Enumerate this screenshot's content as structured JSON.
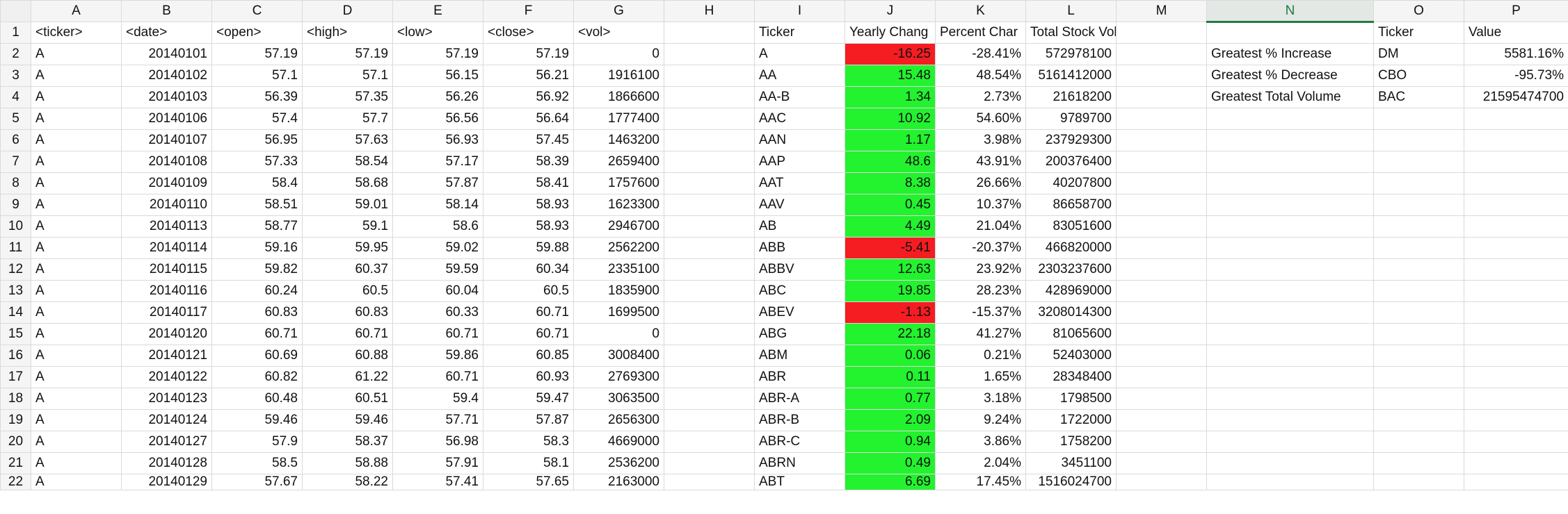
{
  "colors": {
    "positive": "#23f22f",
    "negative": "#f51d22",
    "selected_header": "#1c7c44"
  },
  "columns": [
    "A",
    "B",
    "C",
    "D",
    "E",
    "F",
    "G",
    "H",
    "I",
    "J",
    "K",
    "L",
    "M",
    "N",
    "O",
    "P"
  ],
  "selected_column": "N",
  "header_row": [
    "<ticker>",
    "<date>",
    "<open>",
    "<high>",
    "<low>",
    "<close>",
    "<vol>",
    "",
    "Ticker",
    "Yearly Chang",
    "Percent Char",
    "Total Stock Volume",
    "",
    "",
    "Ticker",
    "Value"
  ],
  "rows": [
    [
      "A",
      "20140101",
      "57.19",
      "57.19",
      "57.19",
      "57.19",
      "0",
      "",
      "A",
      "-16.25",
      "-28.41%",
      "572978100",
      "",
      "Greatest % Increase",
      "DM",
      "5581.16%"
    ],
    [
      "A",
      "20140102",
      "57.1",
      "57.1",
      "56.15",
      "56.21",
      "1916100",
      "",
      "AA",
      "15.48",
      "48.54%",
      "5161412000",
      "",
      "Greatest % Decrease",
      "CBO",
      "-95.73%"
    ],
    [
      "A",
      "20140103",
      "56.39",
      "57.35",
      "56.26",
      "56.92",
      "1866600",
      "",
      "AA-B",
      "1.34",
      "2.73%",
      "21618200",
      "",
      "Greatest Total Volume",
      "BAC",
      "21595474700"
    ],
    [
      "A",
      "20140106",
      "57.4",
      "57.7",
      "56.56",
      "56.64",
      "1777400",
      "",
      "AAC",
      "10.92",
      "54.60%",
      "9789700",
      "",
      "",
      "",
      ""
    ],
    [
      "A",
      "20140107",
      "56.95",
      "57.63",
      "56.93",
      "57.45",
      "1463200",
      "",
      "AAN",
      "1.17",
      "3.98%",
      "237929300",
      "",
      "",
      "",
      ""
    ],
    [
      "A",
      "20140108",
      "57.33",
      "58.54",
      "57.17",
      "58.39",
      "2659400",
      "",
      "AAP",
      "48.6",
      "43.91%",
      "200376400",
      "",
      "",
      "",
      ""
    ],
    [
      "A",
      "20140109",
      "58.4",
      "58.68",
      "57.87",
      "58.41",
      "1757600",
      "",
      "AAT",
      "8.38",
      "26.66%",
      "40207800",
      "",
      "",
      "",
      ""
    ],
    [
      "A",
      "20140110",
      "58.51",
      "59.01",
      "58.14",
      "58.93",
      "1623300",
      "",
      "AAV",
      "0.45",
      "10.37%",
      "86658700",
      "",
      "",
      "",
      ""
    ],
    [
      "A",
      "20140113",
      "58.77",
      "59.1",
      "58.6",
      "58.93",
      "2946700",
      "",
      "AB",
      "4.49",
      "21.04%",
      "83051600",
      "",
      "",
      "",
      ""
    ],
    [
      "A",
      "20140114",
      "59.16",
      "59.95",
      "59.02",
      "59.88",
      "2562200",
      "",
      "ABB",
      "-5.41",
      "-20.37%",
      "466820000",
      "",
      "",
      "",
      ""
    ],
    [
      "A",
      "20140115",
      "59.82",
      "60.37",
      "59.59",
      "60.34",
      "2335100",
      "",
      "ABBV",
      "12.63",
      "23.92%",
      "2303237600",
      "",
      "",
      "",
      ""
    ],
    [
      "A",
      "20140116",
      "60.24",
      "60.5",
      "60.04",
      "60.5",
      "1835900",
      "",
      "ABC",
      "19.85",
      "28.23%",
      "428969000",
      "",
      "",
      "",
      ""
    ],
    [
      "A",
      "20140117",
      "60.83",
      "60.83",
      "60.33",
      "60.71",
      "1699500",
      "",
      "ABEV",
      "-1.13",
      "-15.37%",
      "3208014300",
      "",
      "",
      "",
      ""
    ],
    [
      "A",
      "20140120",
      "60.71",
      "60.71",
      "60.71",
      "60.71",
      "0",
      "",
      "ABG",
      "22.18",
      "41.27%",
      "81065600",
      "",
      "",
      "",
      ""
    ],
    [
      "A",
      "20140121",
      "60.69",
      "60.88",
      "59.86",
      "60.85",
      "3008400",
      "",
      "ABM",
      "0.06",
      "0.21%",
      "52403000",
      "",
      "",
      "",
      ""
    ],
    [
      "A",
      "20140122",
      "60.82",
      "61.22",
      "60.71",
      "60.93",
      "2769300",
      "",
      "ABR",
      "0.11",
      "1.65%",
      "28348400",
      "",
      "",
      "",
      ""
    ],
    [
      "A",
      "20140123",
      "60.48",
      "60.51",
      "59.4",
      "59.47",
      "3063500",
      "",
      "ABR-A",
      "0.77",
      "3.18%",
      "1798500",
      "",
      "",
      "",
      ""
    ],
    [
      "A",
      "20140124",
      "59.46",
      "59.46",
      "57.71",
      "57.87",
      "2656300",
      "",
      "ABR-B",
      "2.09",
      "9.24%",
      "1722000",
      "",
      "",
      "",
      ""
    ],
    [
      "A",
      "20140127",
      "57.9",
      "58.37",
      "56.98",
      "58.3",
      "4669000",
      "",
      "ABR-C",
      "0.94",
      "3.86%",
      "1758200",
      "",
      "",
      "",
      ""
    ],
    [
      "A",
      "20140128",
      "58.5",
      "58.88",
      "57.91",
      "58.1",
      "2536200",
      "",
      "ABRN",
      "0.49",
      "2.04%",
      "3451100",
      "",
      "",
      "",
      ""
    ],
    [
      "A",
      "20140129",
      "57.67",
      "58.22",
      "57.41",
      "57.65",
      "2163000",
      "",
      "ABT",
      "6.69",
      "17.45%",
      "1516024700",
      "",
      "",
      "",
      ""
    ]
  ]
}
